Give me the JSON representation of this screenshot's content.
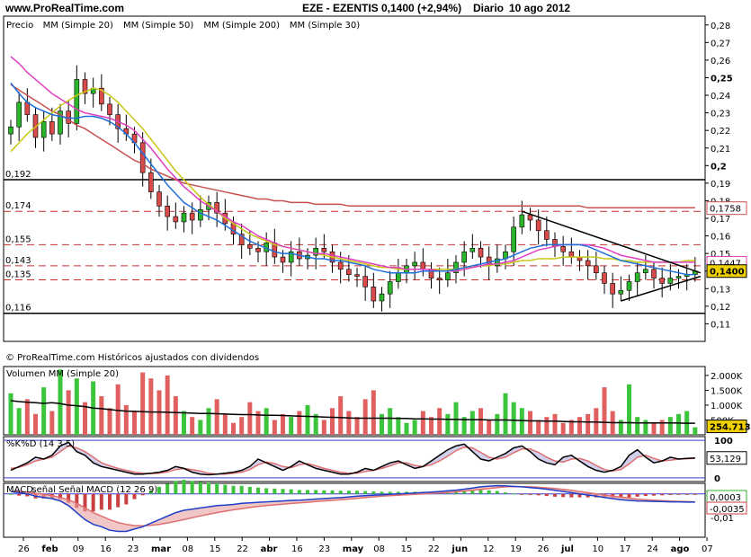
{
  "header": {
    "site": "www.ProRealTime.com",
    "symbol": "EZE - EZENTIS",
    "last": "0,1400 (+2,94%)",
    "period": "Diario",
    "date": "10 ago 2012"
  },
  "copyright": "© ProRealTime.com Históricos ajustados con dividendos",
  "colors": {
    "price_up": "#2bb52b",
    "price_down": "#d94a4a",
    "ma20": "#1e6fd9",
    "ma50": "#c8c814",
    "ma200": "#c85050",
    "ma30": "#e040c0",
    "volume_up": "#3cc43c",
    "volume_down": "#e06060",
    "stoch_k": "#000000",
    "stoch_d": "#e07070",
    "macd": "#1e3fc8",
    "signal": "#e07070",
    "hist_pos": "#3cc43c",
    "hist_neg": "#c84040",
    "last_box": "#f0d000"
  },
  "chart_data": [
    {
      "type": "candlestick",
      "panel": "price",
      "legend": [
        {
          "label": "Precio",
          "color": "#000000"
        },
        {
          "label": "MM (Simple 20)",
          "color": "#1e6fd9"
        },
        {
          "label": "MM (Simple 50)",
          "color": "#c8c814"
        },
        {
          "label": "MM (Simple 200)",
          "color": "#c85050"
        },
        {
          "label": "MM (Simple 30)",
          "color": "#e040c0"
        }
      ],
      "ylim": [
        0.1,
        0.285
      ],
      "y_ticks": [
        "0,28",
        "0,27",
        "0,26",
        "0,25",
        "0,24",
        "0,23",
        "0,22",
        "0,21",
        "0,2",
        "0,19",
        "0,18",
        "0,17",
        "0,16",
        "0,15",
        "0,14",
        "0,13",
        "0,12",
        "0,11"
      ],
      "y_tick_values": [
        0.28,
        0.27,
        0.26,
        0.25,
        0.24,
        0.23,
        0.22,
        0.21,
        0.2,
        0.19,
        0.18,
        0.17,
        0.16,
        0.15,
        0.14,
        0.13,
        0.12,
        0.11
      ],
      "x_ticks": [
        "26",
        "feb",
        "09",
        "16",
        "23",
        "mar",
        "08",
        "15",
        "22",
        "abr",
        "16",
        "23",
        "may",
        "08",
        "15",
        "22",
        "jun",
        "12",
        "19",
        "26",
        "jul",
        "10",
        "17",
        "24",
        "ago",
        "07"
      ],
      "horizontal_levels": [
        {
          "label": "0,192",
          "value": 0.192,
          "style": "solid"
        },
        {
          "label": "0,174",
          "value": 0.174,
          "style": "dashed"
        },
        {
          "label": "0,155",
          "value": 0.155,
          "style": "dashed"
        },
        {
          "label": "0,143",
          "value": 0.143,
          "style": "dashed"
        },
        {
          "label": "0,135",
          "value": 0.135,
          "style": "dashed"
        },
        {
          "label": "0,116",
          "value": 0.116,
          "style": "solid"
        }
      ],
      "value_tags": [
        {
          "label": "0,1758",
          "value": 0.1758,
          "color": "#c85050"
        },
        {
          "label": "0,1447",
          "value": 0.1447,
          "color": "#e040c0"
        },
        {
          "label": "0,1400",
          "value": 0.14,
          "color": "#000000"
        }
      ],
      "closes": [
        0.222,
        0.236,
        0.229,
        0.216,
        0.225,
        0.218,
        0.231,
        0.224,
        0.249,
        0.241,
        0.244,
        0.235,
        0.229,
        0.221,
        0.218,
        0.213,
        0.196,
        0.185,
        0.177,
        0.171,
        0.168,
        0.173,
        0.169,
        0.175,
        0.179,
        0.173,
        0.167,
        0.161,
        0.155,
        0.153,
        0.151,
        0.156,
        0.148,
        0.145,
        0.151,
        0.147,
        0.149,
        0.153,
        0.151,
        0.145,
        0.141,
        0.138,
        0.137,
        0.131,
        0.123,
        0.127,
        0.134,
        0.139,
        0.143,
        0.145,
        0.141,
        0.136,
        0.135,
        0.139,
        0.145,
        0.151,
        0.153,
        0.148,
        0.143,
        0.147,
        0.151,
        0.165,
        0.172,
        0.169,
        0.163,
        0.158,
        0.154,
        0.151,
        0.148,
        0.146,
        0.143,
        0.139,
        0.133,
        0.127,
        0.129,
        0.134,
        0.139,
        0.141,
        0.136,
        0.133,
        0.136,
        0.137,
        0.138,
        0.14
      ],
      "ma20": [
        0.247,
        0.241,
        0.236,
        0.233,
        0.231,
        0.229,
        0.228,
        0.227,
        0.227,
        0.228,
        0.228,
        0.227,
        0.225,
        0.222,
        0.218,
        0.213,
        0.207,
        0.201,
        0.195,
        0.189,
        0.184,
        0.179,
        0.176,
        0.173,
        0.171,
        0.169,
        0.166,
        0.163,
        0.16,
        0.157,
        0.155,
        0.153,
        0.151,
        0.15,
        0.15,
        0.149,
        0.148,
        0.147,
        0.147,
        0.146,
        0.146,
        0.145,
        0.144,
        0.143,
        0.141,
        0.14,
        0.139,
        0.139,
        0.139,
        0.139,
        0.14,
        0.14,
        0.14,
        0.14,
        0.141,
        0.142,
        0.143,
        0.144,
        0.145,
        0.146,
        0.147,
        0.149,
        0.151,
        0.153,
        0.154,
        0.155,
        0.155,
        0.155,
        0.155,
        0.155,
        0.154,
        0.152,
        0.15,
        0.148,
        0.146,
        0.145,
        0.144,
        0.143,
        0.142,
        0.141,
        0.14,
        0.139,
        0.138,
        0.138
      ],
      "ma50": [
        0.208,
        0.213,
        0.218,
        0.222,
        0.226,
        0.23,
        0.234,
        0.237,
        0.24,
        0.242,
        0.244,
        0.243,
        0.24,
        0.236,
        0.231,
        0.226,
        0.221,
        0.215,
        0.209,
        0.203,
        0.197,
        0.192,
        0.187,
        0.182,
        0.178,
        0.174,
        0.17,
        0.167,
        0.164,
        0.161,
        0.159,
        0.157,
        0.155,
        0.154,
        0.153,
        0.152,
        0.151,
        0.15,
        0.149,
        0.148,
        0.147,
        0.146,
        0.145,
        0.144,
        0.143,
        0.142,
        0.142,
        0.141,
        0.141,
        0.141,
        0.141,
        0.141,
        0.141,
        0.141,
        0.141,
        0.142,
        0.142,
        0.143,
        0.143,
        0.144,
        0.144,
        0.145,
        0.146,
        0.146,
        0.147,
        0.147,
        0.147,
        0.148,
        0.148,
        0.148,
        0.148,
        0.148,
        0.147,
        0.147,
        0.146,
        0.146,
        0.145,
        0.145,
        0.145,
        0.145,
        0.145,
        0.145,
        0.146,
        0.146
      ],
      "ma200": [
        0.246,
        0.243,
        0.24,
        0.237,
        0.234,
        0.231,
        0.229,
        0.226,
        0.223,
        0.221,
        0.218,
        0.215,
        0.212,
        0.209,
        0.206,
        0.203,
        0.201,
        0.198,
        0.196,
        0.194,
        0.192,
        0.19,
        0.189,
        0.188,
        0.187,
        0.186,
        0.185,
        0.184,
        0.183,
        0.182,
        0.181,
        0.181,
        0.18,
        0.18,
        0.179,
        0.179,
        0.179,
        0.178,
        0.178,
        0.178,
        0.178,
        0.177,
        0.177,
        0.177,
        0.177,
        0.177,
        0.177,
        0.177,
        0.177,
        0.177,
        0.177,
        0.177,
        0.177,
        0.177,
        0.177,
        0.177,
        0.177,
        0.177,
        0.177,
        0.177,
        0.177,
        0.177,
        0.177,
        0.177,
        0.177,
        0.177,
        0.177,
        0.177,
        0.177,
        0.177,
        0.176,
        0.176,
        0.176,
        0.176,
        0.176,
        0.176,
        0.176,
        0.176,
        0.176,
        0.176,
        0.176,
        0.176,
        0.176,
        0.176
      ],
      "ma30": [
        0.262,
        0.258,
        0.253,
        0.249,
        0.245,
        0.241,
        0.238,
        0.235,
        0.232,
        0.23,
        0.229,
        0.228,
        0.227,
        0.225,
        0.223,
        0.22,
        0.215,
        0.21,
        0.204,
        0.198,
        0.193,
        0.188,
        0.184,
        0.18,
        0.177,
        0.174,
        0.171,
        0.168,
        0.166,
        0.163,
        0.16,
        0.158,
        0.156,
        0.154,
        0.153,
        0.152,
        0.151,
        0.15,
        0.15,
        0.149,
        0.148,
        0.147,
        0.146,
        0.145,
        0.144,
        0.143,
        0.142,
        0.142,
        0.141,
        0.141,
        0.141,
        0.141,
        0.14,
        0.14,
        0.14,
        0.141,
        0.142,
        0.143,
        0.144,
        0.144,
        0.145,
        0.146,
        0.148,
        0.15,
        0.152,
        0.153,
        0.154,
        0.155,
        0.155,
        0.155,
        0.155,
        0.154,
        0.153,
        0.151,
        0.149,
        0.148,
        0.147,
        0.146,
        0.145,
        0.145,
        0.145,
        0.145,
        0.145,
        0.145
      ],
      "triangle": {
        "upper": [
          [
            0.174,
            62
          ],
          [
            0.139,
            83
          ]
        ],
        "lower": [
          [
            0.123,
            74
          ],
          [
            0.137,
            83
          ]
        ]
      }
    },
    {
      "type": "bar",
      "panel": "volume",
      "legend": [
        {
          "label": "Volumen",
          "color": "#3cc43c"
        },
        {
          "label": "MM (Simple 20)",
          "color": "#000000"
        }
      ],
      "y_ticks": [
        "2.000K",
        "1.500K",
        "1.000K",
        "500K"
      ],
      "y_tick_values": [
        2000,
        1500,
        1000,
        500
      ],
      "ylim": [
        0,
        2300
      ],
      "last_value": "254.713",
      "values_k": [
        1400,
        900,
        1200,
        700,
        1600,
        800,
        2200,
        1500,
        1900,
        1100,
        1800,
        1300,
        900,
        1700,
        1000,
        800,
        2100,
        1900,
        1500,
        2000,
        1300,
        800,
        600,
        500,
        900,
        1200,
        700,
        400,
        600,
        1100,
        800,
        900,
        500,
        700,
        600,
        800,
        1000,
        700,
        500,
        900,
        1300,
        800,
        600,
        1200,
        1500,
        700,
        900,
        600,
        400,
        500,
        800,
        600,
        900,
        700,
        1100,
        600,
        800,
        900,
        500,
        700,
        1400,
        1100,
        900,
        800,
        500,
        600,
        700,
        400,
        500,
        600,
        700,
        900,
        1600,
        800,
        500,
        1700,
        600,
        500,
        400,
        500,
        600,
        700,
        800,
        255
      ],
      "ma20_k": [
        1150,
        1120,
        1100,
        1080,
        1060,
        1080,
        1050,
        1000,
        980,
        950,
        900,
        880,
        850,
        820,
        800,
        790,
        780,
        770,
        770,
        760,
        750,
        740,
        730,
        720,
        720,
        710,
        700,
        690,
        680,
        680,
        670,
        660,
        660,
        650,
        640,
        630,
        620,
        610,
        600,
        590,
        580,
        570,
        560,
        560,
        560,
        560,
        560,
        550,
        550,
        540,
        540,
        530,
        530,
        520,
        520,
        510,
        510,
        510,
        500,
        500,
        500,
        490,
        480,
        470,
        470,
        460,
        460,
        450,
        440,
        440,
        430,
        430,
        420,
        410,
        410,
        410,
        400,
        400,
        400,
        400,
        400,
        395,
        390,
        390
      ]
    },
    {
      "type": "line",
      "panel": "stochastic",
      "legend": [
        {
          "label": "%K",
          "color": "#000000"
        },
        {
          "label": "%D (14 3 5)",
          "color": "#e07070"
        }
      ],
      "y_ticks": [
        "100",
        "0"
      ],
      "y_tick_values": [
        100,
        0
      ],
      "ylim": [
        -10,
        110
      ],
      "last_value": "53,129",
      "k": [
        20,
        30,
        40,
        55,
        50,
        60,
        85,
        95,
        70,
        60,
        40,
        30,
        25,
        20,
        15,
        10,
        10,
        12,
        15,
        20,
        30,
        25,
        15,
        10,
        8,
        10,
        12,
        15,
        20,
        30,
        50,
        40,
        30,
        20,
        30,
        45,
        35,
        25,
        20,
        15,
        10,
        10,
        15,
        25,
        20,
        30,
        40,
        45,
        35,
        25,
        30,
        45,
        60,
        75,
        85,
        90,
        70,
        50,
        45,
        55,
        65,
        80,
        85,
        70,
        50,
        40,
        35,
        55,
        60,
        45,
        30,
        20,
        15,
        20,
        30,
        60,
        75,
        55,
        40,
        45,
        55,
        50,
        52,
        53
      ],
      "d": [
        25,
        28,
        35,
        45,
        50,
        55,
        70,
        85,
        80,
        70,
        55,
        40,
        32,
        25,
        20,
        15,
        12,
        11,
        12,
        16,
        22,
        25,
        22,
        18,
        12,
        10,
        10,
        12,
        15,
        22,
        35,
        42,
        38,
        30,
        27,
        35,
        38,
        32,
        25,
        20,
        15,
        12,
        12,
        17,
        20,
        25,
        32,
        40,
        40,
        33,
        30,
        35,
        45,
        58,
        72,
        82,
        80,
        68,
        55,
        50,
        55,
        67,
        77,
        77,
        68,
        55,
        45,
        42,
        50,
        52,
        45,
        33,
        22,
        18,
        22,
        37,
        55,
        60,
        52,
        45,
        47,
        50,
        51,
        52
      ]
    },
    {
      "type": "bar",
      "panel": "macd",
      "legend": [
        {
          "label": "MACD",
          "color": "#1e3fc8"
        },
        {
          "label": "señal Señal MACD (12 26 9)",
          "color": "#e07070"
        }
      ],
      "y_ticks": [
        "0",
        "-0,01"
      ],
      "y_tick_values": [
        0,
        -0.01
      ],
      "ylim": [
        -0.0185,
        0.0045
      ],
      "value_tags": [
        {
          "label": "0,0003",
          "value": 0.0003,
          "color": "#2bb52b"
        },
        {
          "label": "-0,0035",
          "value": -0.0035,
          "color": "#c84040"
        }
      ],
      "macd": [
        0.001,
        0.0005,
        0,
        -0.001,
        -0.0015,
        -0.002,
        -0.003,
        -0.005,
        -0.008,
        -0.011,
        -0.013,
        -0.014,
        -0.0155,
        -0.016,
        -0.016,
        -0.015,
        -0.014,
        -0.0125,
        -0.011,
        -0.0095,
        -0.008,
        -0.007,
        -0.0065,
        -0.006,
        -0.0055,
        -0.005,
        -0.0048,
        -0.0045,
        -0.004,
        -0.0038,
        -0.0036,
        -0.0034,
        -0.0032,
        -0.003,
        -0.0028,
        -0.0027,
        -0.0025,
        -0.0022,
        -0.002,
        -0.0018,
        -0.0016,
        -0.0013,
        -0.001,
        -0.0008,
        -0.0006,
        -0.0004,
        -0.0002,
        0,
        0.0002,
        0.0004,
        0.0006,
        0.0008,
        0.001,
        0.0013,
        0.0016,
        0.002,
        0.0025,
        0.003,
        0.0033,
        0.0035,
        0.0034,
        0.0032,
        0.003,
        0.0027,
        0.0024,
        0.002,
        0.0015,
        0.001,
        0.0005,
        0,
        -0.0005,
        -0.001,
        -0.0015,
        -0.002,
        -0.0025,
        -0.0028,
        -0.003,
        -0.0031,
        -0.0032,
        -0.0033,
        -0.0034,
        -0.0034,
        -0.0035,
        -0.0035
      ],
      "signal": [
        0.001,
        0.001,
        0.0007,
        0.0003,
        -0.0002,
        -0.0007,
        -0.0015,
        -0.0025,
        -0.004,
        -0.006,
        -0.008,
        -0.0095,
        -0.011,
        -0.0122,
        -0.013,
        -0.0135,
        -0.0136,
        -0.0134,
        -0.013,
        -0.0124,
        -0.0117,
        -0.011,
        -0.0102,
        -0.0094,
        -0.0087,
        -0.008,
        -0.0074,
        -0.0068,
        -0.0063,
        -0.0058,
        -0.0054,
        -0.005,
        -0.0047,
        -0.0044,
        -0.0041,
        -0.0038,
        -0.0036,
        -0.0033,
        -0.003,
        -0.0028,
        -0.0025,
        -0.0022,
        -0.0019,
        -0.0016,
        -0.0013,
        -0.001,
        -0.0008,
        -0.0006,
        -0.0004,
        -0.0002,
        0,
        0.0002,
        0.0004,
        0.0006,
        0.0009,
        0.0012,
        0.0015,
        0.0019,
        0.0023,
        0.0027,
        0.003,
        0.0031,
        0.0031,
        0.003,
        0.0028,
        0.0026,
        0.0023,
        0.0019,
        0.0015,
        0.001,
        0.0005,
        0,
        -0.0005,
        -0.001,
        -0.0014,
        -0.0018,
        -0.0022,
        -0.0025,
        -0.0027,
        -0.0029,
        -0.0031,
        -0.0032,
        -0.0033,
        -0.0034
      ]
    }
  ]
}
